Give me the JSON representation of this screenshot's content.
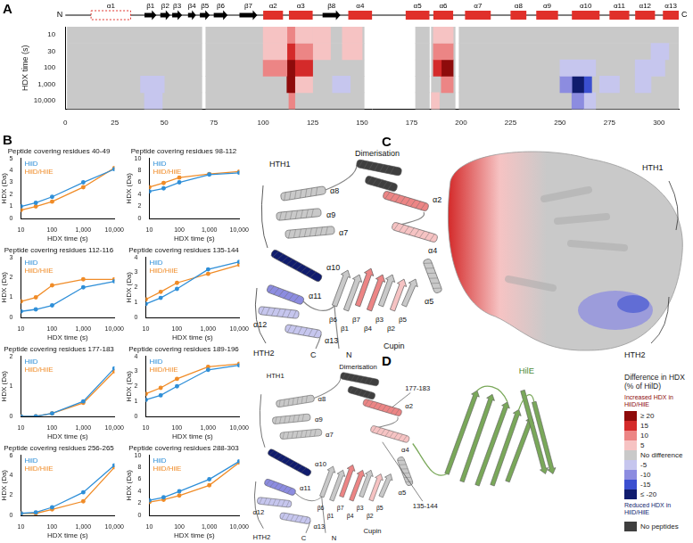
{
  "panel_labels": [
    "A",
    "B",
    "C",
    "D"
  ],
  "chart_data": [
    {
      "type": "heatmap",
      "y_label": "HDX time (s)",
      "rows": [
        {
          "value": 10,
          "label": "10"
        },
        {
          "value": 30,
          "label": "30"
        },
        {
          "value": 100,
          "label": "100"
        },
        {
          "value": 1000,
          "label": "1,000"
        },
        {
          "value": 10000,
          "label": "10,000"
        }
      ],
      "xlim": [
        0,
        310
      ],
      "xticks": [
        0,
        25,
        50,
        75,
        100,
        125,
        150,
        175,
        200,
        225,
        250,
        275,
        300
      ],
      "color": "#c9c9c9",
      "grid": false,
      "coverage": [
        [
          1,
          69
        ],
        [
          71,
          151
        ],
        [
          177,
          184
        ],
        [
          185,
          197
        ],
        [
          199,
          310
        ]
      ],
      "cells": [
        {
          "start": 38,
          "end": 50,
          "time": 1000,
          "value": -5
        },
        {
          "start": 40,
          "end": 49,
          "time": 10000,
          "value": -5
        },
        {
          "start": 100,
          "end": 112,
          "time": 10,
          "value": 5
        },
        {
          "start": 100,
          "end": 112,
          "time": 30,
          "value": 5
        },
        {
          "start": 100,
          "end": 112,
          "time": 100,
          "value": 10
        },
        {
          "start": 112,
          "end": 116,
          "time": 10,
          "value": 10
        },
        {
          "start": 112,
          "end": 116,
          "time": 30,
          "value": 15
        },
        {
          "start": 112,
          "end": 116,
          "time": 100,
          "value": 20
        },
        {
          "start": 112,
          "end": 116,
          "time": 1000,
          "value": 20
        },
        {
          "start": 113,
          "end": 116,
          "time": 10000,
          "value": 10
        },
        {
          "start": 116,
          "end": 125,
          "time": 10,
          "value": 5
        },
        {
          "start": 116,
          "end": 125,
          "time": 30,
          "value": 10
        },
        {
          "start": 116,
          "end": 125,
          "time": 100,
          "value": 15
        },
        {
          "start": 116,
          "end": 125,
          "time": 1000,
          "value": 5
        },
        {
          "start": 125,
          "end": 134,
          "time": 10,
          "value": 5
        },
        {
          "start": 125,
          "end": 134,
          "time": 30,
          "value": 5
        },
        {
          "start": 140,
          "end": 150,
          "time": 10,
          "value": 5
        },
        {
          "start": 140,
          "end": 150,
          "time": 30,
          "value": 5
        },
        {
          "start": 135,
          "end": 144,
          "time": 1000,
          "value": -5
        },
        {
          "start": 186,
          "end": 190,
          "time": 10,
          "value": 5
        },
        {
          "start": 186,
          "end": 190,
          "time": 30,
          "value": 10
        },
        {
          "start": 186,
          "end": 190,
          "time": 100,
          "value": 15
        },
        {
          "start": 190,
          "end": 196,
          "time": 10,
          "value": 5
        },
        {
          "start": 190,
          "end": 196,
          "time": 30,
          "value": 10
        },
        {
          "start": 190,
          "end": 196,
          "time": 100,
          "value": 20
        },
        {
          "start": 190,
          "end": 196,
          "time": 1000,
          "value": 10
        },
        {
          "start": 185,
          "end": 189,
          "time": 10000,
          "value": 5
        },
        {
          "start": 250,
          "end": 268,
          "time": 100,
          "value": -5
        },
        {
          "start": 250,
          "end": 256,
          "time": 1000,
          "value": -10
        },
        {
          "start": 256,
          "end": 262,
          "time": 1000,
          "value": -20
        },
        {
          "start": 262,
          "end": 266,
          "time": 1000,
          "value": -15
        },
        {
          "start": 256,
          "end": 262,
          "time": 10000,
          "value": -10
        },
        {
          "start": 262,
          "end": 268,
          "time": 10000,
          "value": -5
        },
        {
          "start": 270,
          "end": 280,
          "time": 1000,
          "value": -5
        },
        {
          "start": 288,
          "end": 303,
          "time": 100,
          "value": -5
        },
        {
          "start": 296,
          "end": 305,
          "time": 30,
          "value": -5
        },
        {
          "start": 288,
          "end": 296,
          "time": 1000,
          "value": -5
        }
      ]
    },
    {
      "type": "line",
      "title": "Peptide covering residues 40-49",
      "x_label": "HDX time (s)",
      "y_label": "HDX (Da)",
      "log": "x",
      "grid": false,
      "marker": "circle",
      "x": [
        10,
        30,
        100,
        1000,
        10000
      ],
      "xlim": [
        10,
        10000
      ],
      "xticks": [
        10,
        100,
        {
          "value": 1000,
          "label": "1,000"
        },
        {
          "value": 10000,
          "label": "10,000"
        }
      ],
      "ylim": [
        0,
        5
      ],
      "yticks": [
        0,
        1,
        2,
        3,
        4,
        5
      ],
      "series": [
        {
          "name": "HilD",
          "color": "#2f8fd8",
          "values": [
            1.0,
            1.3,
            1.8,
            3.0,
            4.1
          ]
        },
        {
          "name": "HilD/HilE",
          "color": "#f08c28",
          "values": [
            0.7,
            1.0,
            1.4,
            2.6,
            4.2
          ]
        }
      ]
    },
    {
      "type": "line",
      "title": "Peptide covering residues 98-112",
      "x_label": "HDX time (s)",
      "y_label": "HDX (Da)",
      "log": "x",
      "grid": false,
      "marker": "circle",
      "x": [
        10,
        30,
        100,
        1000,
        10000
      ],
      "xlim": [
        10,
        10000
      ],
      "xticks": [
        10,
        100,
        {
          "value": 1000,
          "label": "1,000"
        },
        {
          "value": 10000,
          "label": "10,000"
        }
      ],
      "ylim": [
        0,
        10
      ],
      "yticks": [
        0,
        2,
        4,
        6,
        8,
        10
      ],
      "series": [
        {
          "name": "HilD",
          "color": "#2f8fd8",
          "values": [
            4.5,
            5.0,
            6.0,
            7.3,
            7.6
          ]
        },
        {
          "name": "HilD/HilE",
          "color": "#f08c28",
          "values": [
            5.2,
            5.9,
            6.8,
            7.4,
            7.8
          ]
        }
      ]
    },
    {
      "type": "line",
      "title": "Peptide covering residues 112-116",
      "x_label": "HDX time (s)",
      "y_label": "HDX (Da)",
      "log": "x",
      "grid": false,
      "marker": "circle",
      "x": [
        10,
        30,
        100,
        1000,
        10000
      ],
      "xlim": [
        10,
        10000
      ],
      "xticks": [
        10,
        100,
        {
          "value": 1000,
          "label": "1,000"
        },
        {
          "value": 10000,
          "label": "10,000"
        }
      ],
      "ylim": [
        0,
        3
      ],
      "yticks": [
        0,
        1,
        2,
        3
      ],
      "series": [
        {
          "name": "HilD",
          "color": "#2f8fd8",
          "values": [
            0.3,
            0.4,
            0.6,
            1.5,
            1.8
          ]
        },
        {
          "name": "HilD/HilE",
          "color": "#f08c28",
          "values": [
            0.8,
            1.0,
            1.6,
            1.9,
            1.9
          ]
        }
      ]
    },
    {
      "type": "line",
      "title": "Peptide covering residues 135-144",
      "x_label": "HDX time (s)",
      "y_label": "HDX (Da)",
      "log": "x",
      "grid": false,
      "marker": "circle",
      "x": [
        10,
        30,
        100,
        1000,
        10000
      ],
      "xlim": [
        10,
        10000
      ],
      "xticks": [
        10,
        100,
        {
          "value": 1000,
          "label": "1,000"
        },
        {
          "value": 10000,
          "label": "10,000"
        }
      ],
      "ylim": [
        0,
        4
      ],
      "yticks": [
        0,
        1,
        2,
        3,
        4
      ],
      "series": [
        {
          "name": "HilD",
          "color": "#2f8fd8",
          "values": [
            0.9,
            1.3,
            1.9,
            3.2,
            3.7
          ]
        },
        {
          "name": "HilD/HilE",
          "color": "#f08c28",
          "values": [
            1.2,
            1.7,
            2.3,
            2.9,
            3.5
          ]
        }
      ]
    },
    {
      "type": "line",
      "title": "Peptide covering residues 177-183",
      "x_label": "HDX time (s)",
      "y_label": "HDX (Da)",
      "log": "x",
      "grid": false,
      "marker": "circle",
      "x": [
        10,
        30,
        100,
        1000,
        10000
      ],
      "xlim": [
        10,
        10000
      ],
      "xticks": [
        10,
        100,
        {
          "value": 1000,
          "label": "1,000"
        },
        {
          "value": 10000,
          "label": "10,000"
        }
      ],
      "ylim": [
        0,
        2
      ],
      "yticks": [
        0,
        1,
        2
      ],
      "series": [
        {
          "name": "HilD",
          "color": "#2f8fd8",
          "values": [
            0.0,
            0.0,
            0.1,
            0.5,
            1.6
          ]
        },
        {
          "name": "HilD/HilE",
          "color": "#f08c28",
          "values": [
            0.0,
            0.0,
            0.1,
            0.45,
            1.5
          ]
        }
      ]
    },
    {
      "type": "line",
      "title": "Peptide covering residues 189-196",
      "x_label": "HDX time (s)",
      "y_label": "HDX (Da)",
      "log": "x",
      "grid": false,
      "marker": "circle",
      "x": [
        10,
        30,
        100,
        1000,
        10000
      ],
      "xlim": [
        10,
        10000
      ],
      "xticks": [
        10,
        100,
        {
          "value": 1000,
          "label": "1,000"
        },
        {
          "value": 10000,
          "label": "10,000"
        }
      ],
      "ylim": [
        0,
        4
      ],
      "yticks": [
        0,
        1,
        2,
        3,
        4
      ],
      "series": [
        {
          "name": "HilD",
          "color": "#2f8fd8",
          "values": [
            1.1,
            1.4,
            2.0,
            3.1,
            3.4
          ]
        },
        {
          "name": "HilD/HilE",
          "color": "#f08c28",
          "values": [
            1.5,
            1.9,
            2.5,
            3.3,
            3.5
          ]
        }
      ]
    },
    {
      "type": "line",
      "title": "Peptide covering residues 256-265",
      "x_label": "HDX time (s)",
      "y_label": "HDX (Da)",
      "log": "x",
      "grid": false,
      "marker": "circle",
      "x": [
        10,
        30,
        100,
        1000,
        10000
      ],
      "xlim": [
        10,
        10000
      ],
      "xticks": [
        10,
        100,
        {
          "value": 1000,
          "label": "1,000"
        },
        {
          "value": 10000,
          "label": "10,000"
        }
      ],
      "ylim": [
        0,
        6
      ],
      "yticks": [
        0,
        2,
        4,
        6
      ],
      "series": [
        {
          "name": "HilD",
          "color": "#2f8fd8",
          "values": [
            0.2,
            0.3,
            0.8,
            2.3,
            5.0
          ]
        },
        {
          "name": "HilD/HilE",
          "color": "#f08c28",
          "values": [
            0.2,
            0.2,
            0.6,
            1.4,
            4.8
          ]
        }
      ]
    },
    {
      "type": "line",
      "title": "Peptide covering residues 288-303",
      "x_label": "HDX time (s)",
      "y_label": "HDX (Da)",
      "log": "x",
      "grid": false,
      "marker": "circle",
      "x": [
        10,
        30,
        100,
        1000,
        10000
      ],
      "xlim": [
        10,
        10000
      ],
      "xticks": [
        10,
        100,
        {
          "value": 1000,
          "label": "1,000"
        },
        {
          "value": 10000,
          "label": "10,000"
        }
      ],
      "ylim": [
        0,
        10
      ],
      "yticks": [
        0,
        2,
        4,
        6,
        8,
        10
      ],
      "series": [
        {
          "name": "HilD",
          "color": "#2f8fd8",
          "values": [
            2.5,
            3.0,
            4.0,
            6.0,
            9.0
          ]
        },
        {
          "name": "HilD/HilE",
          "color": "#f08c28",
          "values": [
            2.2,
            2.6,
            3.3,
            5.0,
            8.8
          ]
        }
      ]
    }
  ],
  "secondary_structure": {
    "n_label": "N",
    "c_label": "C",
    "elements": [
      {
        "name": "α1",
        "type": "helix",
        "start": 13,
        "end": 33,
        "line_style": "dashed"
      },
      {
        "name": "β1",
        "type": "strand",
        "start": 40,
        "end": 46
      },
      {
        "name": "β2",
        "type": "strand",
        "start": 48,
        "end": 53
      },
      {
        "name": "β3",
        "type": "strand",
        "start": 54,
        "end": 59
      },
      {
        "name": "β4",
        "type": "strand",
        "start": 62,
        "end": 66
      },
      {
        "name": "β5",
        "type": "strand",
        "start": 68,
        "end": 73
      },
      {
        "name": "β6",
        "type": "strand",
        "start": 75,
        "end": 82
      },
      {
        "name": "β7",
        "type": "strand",
        "start": 88,
        "end": 97
      },
      {
        "name": "α2",
        "type": "helix",
        "start": 100,
        "end": 110
      },
      {
        "name": "α3",
        "type": "helix",
        "start": 113,
        "end": 125
      },
      {
        "name": "β8",
        "type": "strand",
        "start": 130,
        "end": 139
      },
      {
        "name": "α4",
        "type": "helix",
        "start": 143,
        "end": 155
      },
      {
        "name": "α5",
        "type": "helix",
        "start": 172,
        "end": 184
      },
      {
        "name": "α6",
        "type": "helix",
        "start": 186,
        "end": 196
      },
      {
        "name": "α7",
        "type": "helix",
        "start": 202,
        "end": 215
      },
      {
        "name": "α8",
        "type": "helix",
        "start": 225,
        "end": 233
      },
      {
        "name": "α9",
        "type": "helix",
        "start": 238,
        "end": 249
      },
      {
        "name": "α10",
        "type": "helix",
        "start": 256,
        "end": 270
      },
      {
        "name": "α11",
        "type": "helix",
        "start": 275,
        "end": 285
      },
      {
        "name": "α12",
        "type": "helix",
        "start": 288,
        "end": 298
      },
      {
        "name": "α13",
        "type": "helix",
        "start": 302,
        "end": 310
      }
    ]
  },
  "structure_panels": [
    {
      "monomer_labels": [
        "HTH1",
        "α8",
        "α9",
        "α7",
        "α10",
        "α11",
        "α12",
        "α13",
        "HTH2",
        "Cupin",
        "β6",
        "β1",
        "β7",
        "β4",
        "β3",
        "β2",
        "β5",
        "α2",
        "α4",
        "α5",
        "N",
        "C",
        "Dimerisation"
      ],
      "extra_labels": [
        "HTH1",
        "HTH2"
      ]
    },
    {
      "monomer_labels": [
        "HTH1",
        "α8",
        "α9",
        "α7",
        "α10",
        "α11",
        "α12",
        "α13",
        "HTH2",
        "Cupin",
        "β6",
        "β1",
        "β7",
        "β4",
        "β3",
        "β2",
        "β5",
        "α2",
        "α4",
        "α5",
        "N",
        "C",
        "Dimerisation"
      ],
      "extra_labels": [
        "HilE",
        "177-183",
        "135-144"
      ]
    }
  ],
  "colorbar": {
    "title": "Difference in HDX (% of HilD)",
    "increased": "Increased HDX in HilD/HilE",
    "reduced": "Reduced HDX in HilD/HilE",
    "levels": [
      {
        "value": 20,
        "label": "≥ 20",
        "color": "#8e0b0b"
      },
      {
        "value": 15,
        "label": "15",
        "color": "#d42a2a"
      },
      {
        "value": 10,
        "label": "10",
        "color": "#ec8585"
      },
      {
        "value": 5,
        "label": "5",
        "color": "#f6c3c3"
      },
      {
        "value": 0,
        "label": "No difference",
        "color": "#c9c9c9"
      },
      {
        "value": -5,
        "label": "-5",
        "color": "#c6c6ee"
      },
      {
        "value": -10,
        "label": "-10",
        "color": "#8c8ce0"
      },
      {
        "value": -15,
        "label": "-15",
        "color": "#3b4fd0"
      },
      {
        "value": -20,
        "label": "≤ -20",
        "color": "#101c6e"
      }
    ],
    "no_peptides": {
      "label": "No peptides",
      "color": "#3f3f3f"
    }
  }
}
